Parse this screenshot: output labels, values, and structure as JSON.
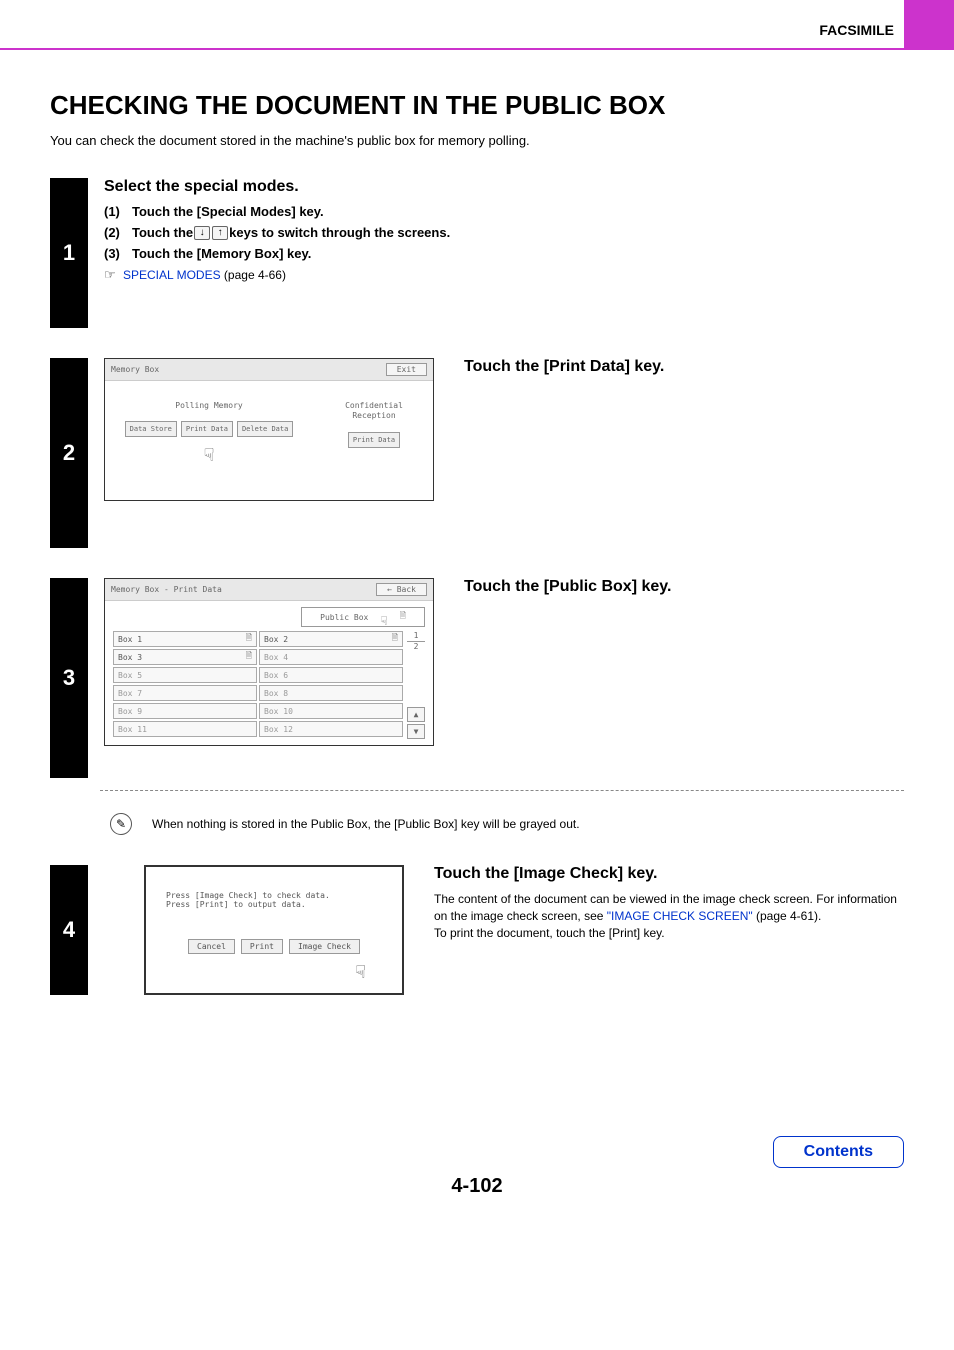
{
  "header": {
    "section": "FACSIMILE"
  },
  "title": "CHECKING THE DOCUMENT IN THE PUBLIC BOX",
  "intro": "You can check the document stored in the machine's public box for memory polling.",
  "step1": {
    "num": "1",
    "title": "Select the special modes.",
    "items": [
      {
        "n": "(1)",
        "text": "Touch the [Special Modes] key."
      },
      {
        "n": "(2)",
        "pre": "Touch the ",
        "post": " keys to switch through the screens."
      },
      {
        "n": "(3)",
        "text": "Touch the [Memory Box] key."
      }
    ],
    "xref_link": "SPECIAL MODES",
    "xref_page": " (page 4-66)",
    "hand": "☞"
  },
  "step2": {
    "num": "2",
    "instruction": "Touch the [Print Data] key.",
    "screen": {
      "title": "Memory Box",
      "exit": "Exit",
      "col1_label": "Polling Memory",
      "col2_label": "Confidential\nReception",
      "btn_data_store": "Data Store",
      "btn_print_data": "Print Data",
      "btn_delete_data": "Delete Data",
      "btn_print_data2": "Print Data"
    }
  },
  "step3": {
    "num": "3",
    "instruction": "Touch the [Public Box] key.",
    "screen": {
      "title": "Memory Box - Print Data",
      "back": "Back",
      "public_box": "Public Box",
      "boxes_left": [
        "Box 1",
        "Box 3",
        "Box 5",
        "Box 7",
        "Box 9",
        "Box 11"
      ],
      "boxes_right": [
        "Box 2",
        "Box 4",
        "Box 6",
        "Box 8",
        "Box 10",
        "Box 12"
      ],
      "page_top": "1",
      "page_bot": "2"
    },
    "note": "When nothing is stored in the Public Box, the [Public Box] key will be grayed out."
  },
  "step4": {
    "num": "4",
    "instruction": "Touch the [Image Check] key.",
    "desc1": "The content of the document can be viewed in the image check screen. For information on the image check screen, see ",
    "desc_link": "\"IMAGE CHECK SCREEN\"",
    "desc_page": " (page 4-61).",
    "desc2": "To print the document, touch the [Print] key.",
    "screen": {
      "line1": "Press [Image Check] to check data.",
      "line2": "Press [Print] to output data.",
      "btn_cancel": "Cancel",
      "btn_print": "Print",
      "btn_image_check": "Image Check"
    }
  },
  "page_num": "4-102",
  "contents": "Contents",
  "colors": {
    "accent": "#cc33cc",
    "link": "#0033cc"
  }
}
